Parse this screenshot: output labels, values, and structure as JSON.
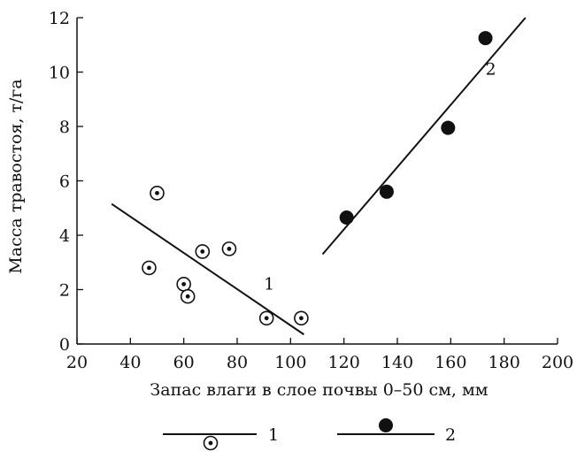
{
  "chart_data": {
    "type": "scatter",
    "title": "",
    "xlabel": "Запас влаги в слое почвы 0–50 см, мм",
    "ylabel": "Масса травостоя, т/га",
    "xlim": [
      20,
      200
    ],
    "ylim": [
      0,
      12
    ],
    "x_ticks": [
      "20",
      "40",
      "60",
      "80",
      "100",
      "120",
      "140",
      "160",
      "180",
      "200"
    ],
    "y_ticks": [
      "0",
      "2",
      "4",
      "6",
      "8",
      "10",
      "12"
    ],
    "grid": false,
    "legend_position": "bottom",
    "series": [
      {
        "name": "1",
        "marker": "dotted-circle",
        "points": [
          {
            "x": 47,
            "y": 2.8
          },
          {
            "x": 50,
            "y": 5.55
          },
          {
            "x": 60,
            "y": 2.2
          },
          {
            "x": 61.5,
            "y": 1.75
          },
          {
            "x": 67,
            "y": 3.4
          },
          {
            "x": 77,
            "y": 3.5
          },
          {
            "x": 91,
            "y": 0.95
          },
          {
            "x": 104,
            "y": 0.95
          }
        ],
        "trend_line": [
          {
            "x": 33,
            "y": 5.15
          },
          {
            "x": 105,
            "y": 0.35
          }
        ],
        "line_label": "1",
        "line_label_pos": {
          "x": 92,
          "y": 2.0
        }
      },
      {
        "name": "2",
        "marker": "filled-circle",
        "points": [
          {
            "x": 121,
            "y": 4.65
          },
          {
            "x": 136,
            "y": 5.6
          },
          {
            "x": 159,
            "y": 7.95
          },
          {
            "x": 173,
            "y": 11.25
          }
        ],
        "trend_line": [
          {
            "x": 112,
            "y": 3.3
          },
          {
            "x": 188,
            "y": 12.0
          }
        ],
        "line_label": "2",
        "line_label_pos": {
          "x": 175,
          "y": 9.9
        }
      }
    ]
  }
}
